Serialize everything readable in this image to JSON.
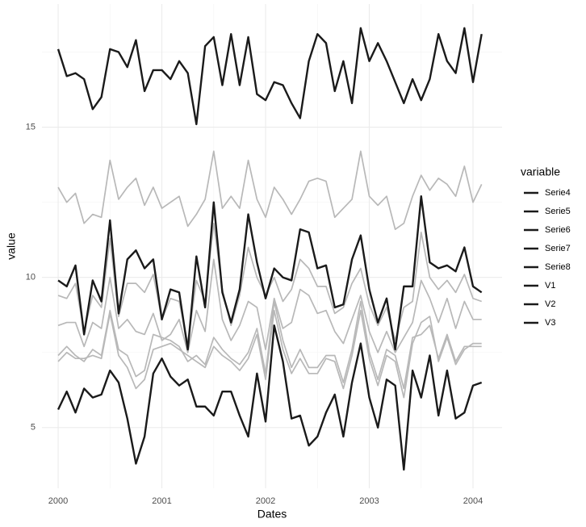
{
  "chart_data": {
    "type": "line",
    "x_label": "Dates",
    "y_label": "value",
    "legend_title": "variable",
    "legend_position": "right",
    "legend_key_color": "#1a1a1a",
    "grid": true,
    "minor_grid": true,
    "xlim": [
      1999.844,
      2004.28
    ],
    "ylim": [
      2.98,
      19.1
    ],
    "xticks": [
      2000,
      2001,
      2002,
      2003,
      2004
    ],
    "yticks": [
      5,
      10,
      15
    ],
    "x": [
      2000,
      2000.083,
      2000.167,
      2000.25,
      2000.333,
      2000.417,
      2000.5,
      2000.583,
      2000.667,
      2000.75,
      2000.833,
      2000.917,
      2001,
      2001.083,
      2001.167,
      2001.25,
      2001.333,
      2001.417,
      2001.5,
      2001.583,
      2001.667,
      2001.75,
      2001.833,
      2001.917,
      2002,
      2002.083,
      2002.167,
      2002.25,
      2002.333,
      2002.417,
      2002.5,
      2002.583,
      2002.667,
      2002.75,
      2002.833,
      2002.917,
      2003,
      2003.083,
      2003.167,
      2003.25,
      2003.333,
      2003.417,
      2003.5,
      2003.583,
      2003.667,
      2003.75,
      2003.833,
      2003.917,
      2004,
      2004.083
    ],
    "series": [
      {
        "name": "Serie4",
        "color": "#b8b8b8",
        "values": [
          13.0,
          12.5,
          12.8,
          11.8,
          12.1,
          12.0,
          13.9,
          12.6,
          13.0,
          13.3,
          12.4,
          13.0,
          12.3,
          12.5,
          12.7,
          11.7,
          12.1,
          12.6,
          14.2,
          12.3,
          12.7,
          12.3,
          13.9,
          12.6,
          12.0,
          13.0,
          12.6,
          12.1,
          12.6,
          13.2,
          13.3,
          13.2,
          12.0,
          12.3,
          12.6,
          14.2,
          12.7,
          12.4,
          12.7,
          11.6,
          11.8,
          12.7,
          13.4,
          12.9,
          13.3,
          13.1,
          12.7,
          13.7,
          12.5,
          13.1
        ]
      },
      {
        "name": "Serie5",
        "color": "#b8b8b8",
        "values": [
          9.4,
          9.3,
          9.8,
          8.2,
          9.4,
          9.0,
          11.3,
          8.7,
          9.8,
          9.8,
          9.5,
          10.1,
          8.6,
          9.3,
          9.2,
          7.8,
          9.9,
          9.2,
          11.8,
          9.6,
          8.4,
          9.4,
          11.0,
          10.0,
          9.4,
          10.0,
          9.2,
          9.6,
          10.6,
          10.3,
          9.7,
          9.7,
          8.8,
          9.0,
          9.8,
          10.3,
          9.1,
          8.4,
          9.0,
          7.9,
          9.0,
          9.2,
          11.5,
          10.0,
          9.6,
          9.9,
          9.5,
          10.1,
          9.3,
          9.2
        ]
      },
      {
        "name": "Serie6",
        "color": "#b8b8b8",
        "values": [
          8.4,
          8.5,
          8.5,
          7.7,
          8.5,
          8.3,
          10.0,
          8.3,
          8.6,
          8.2,
          8.1,
          8.8,
          7.9,
          8.1,
          8.6,
          7.5,
          8.9,
          8.2,
          10.6,
          8.6,
          7.9,
          8.4,
          9.2,
          9.0,
          7.6,
          9.3,
          8.3,
          8.5,
          9.6,
          9.4,
          8.8,
          8.9,
          8.2,
          7.8,
          8.6,
          9.4,
          8.2,
          7.5,
          8.2,
          7.5,
          8.0,
          8.5,
          9.9,
          9.3,
          8.5,
          9.3,
          8.3,
          9.2,
          8.6,
          8.6
        ]
      },
      {
        "name": "Serie7",
        "color": "#b8b8b8",
        "values": [
          7.4,
          7.7,
          7.4,
          7.2,
          7.6,
          7.4,
          8.9,
          7.6,
          7.4,
          6.7,
          6.9,
          8.1,
          8.0,
          7.9,
          7.7,
          7.2,
          7.4,
          7.1,
          8.0,
          7.6,
          7.3,
          7.1,
          7.5,
          8.3,
          6.8,
          9.2,
          7.9,
          7.0,
          7.6,
          7.0,
          7.0,
          7.4,
          7.4,
          6.5,
          7.6,
          9.2,
          7.5,
          6.6,
          7.6,
          7.4,
          6.3,
          8.0,
          8.1,
          8.4,
          7.3,
          8.1,
          7.2,
          7.7,
          7.7,
          7.7
        ]
      },
      {
        "name": "Serie8",
        "color": "#b8b8b8",
        "values": [
          7.2,
          7.5,
          7.3,
          7.3,
          7.4,
          7.3,
          8.8,
          7.4,
          7.0,
          6.3,
          6.6,
          7.6,
          7.7,
          7.8,
          7.6,
          7.4,
          7.2,
          7.0,
          7.7,
          7.4,
          7.2,
          6.9,
          7.3,
          8.1,
          6.6,
          8.9,
          7.6,
          6.8,
          7.3,
          6.8,
          6.8,
          7.3,
          7.2,
          6.3,
          7.4,
          8.9,
          7.3,
          6.4,
          7.4,
          7.2,
          6.0,
          7.8,
          8.5,
          8.7,
          7.2,
          8.0,
          7.1,
          7.6,
          7.8,
          7.8
        ]
      },
      {
        "name": "V1",
        "color": "#1a1a1a",
        "values": [
          17.6,
          16.7,
          16.8,
          16.6,
          15.6,
          16.0,
          17.6,
          17.5,
          17.0,
          17.9,
          16.2,
          16.9,
          16.9,
          16.6,
          17.2,
          16.8,
          15.1,
          17.7,
          18.0,
          16.4,
          18.1,
          16.4,
          18.0,
          16.1,
          15.9,
          16.5,
          16.4,
          15.8,
          15.3,
          17.2,
          18.1,
          17.8,
          16.2,
          17.2,
          15.8,
          18.3,
          17.2,
          17.8,
          17.2,
          16.5,
          15.8,
          16.6,
          15.9,
          16.6,
          18.1,
          17.2,
          16.8,
          18.3,
          16.5,
          18.1
        ]
      },
      {
        "name": "V2",
        "color": "#1a1a1a",
        "values": [
          9.9,
          9.7,
          10.4,
          8.1,
          9.9,
          9.2,
          11.9,
          8.8,
          10.6,
          10.9,
          10.3,
          10.6,
          8.6,
          9.6,
          9.5,
          7.6,
          10.7,
          9.0,
          12.5,
          9.5,
          8.5,
          9.6,
          12.1,
          10.5,
          9.3,
          10.3,
          10.0,
          9.9,
          11.6,
          11.5,
          10.3,
          10.4,
          9.0,
          9.1,
          10.6,
          11.4,
          9.6,
          8.5,
          9.3,
          7.6,
          9.7,
          9.7,
          12.7,
          10.5,
          10.3,
          10.4,
          10.2,
          11.0,
          9.7,
          9.5
        ]
      },
      {
        "name": "V3",
        "color": "#1a1a1a",
        "values": [
          5.6,
          6.2,
          5.5,
          6.3,
          6.0,
          6.1,
          6.9,
          6.5,
          5.3,
          3.8,
          4.7,
          6.8,
          7.3,
          6.7,
          6.4,
          6.6,
          5.7,
          5.7,
          5.4,
          6.2,
          6.2,
          5.4,
          4.7,
          6.8,
          5.2,
          8.4,
          7.2,
          5.3,
          5.4,
          4.4,
          4.7,
          5.5,
          6.1,
          4.7,
          6.5,
          7.8,
          6.0,
          5.0,
          6.6,
          6.4,
          3.6,
          6.9,
          6.0,
          7.4,
          5.4,
          6.9,
          5.3,
          5.5,
          6.4,
          6.5
        ]
      }
    ]
  }
}
